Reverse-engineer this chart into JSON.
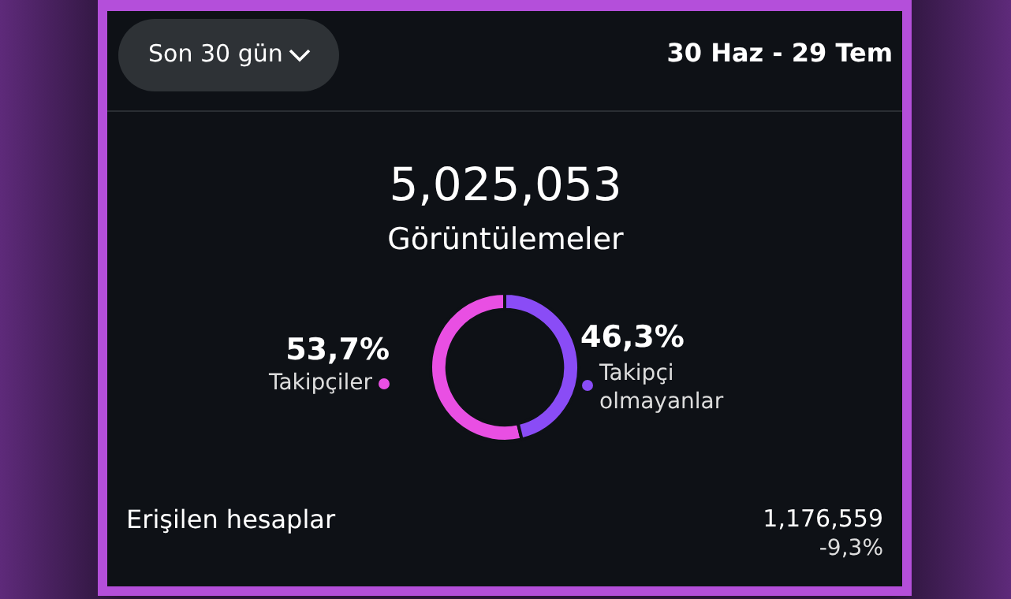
{
  "chart_data": {
    "type": "donut",
    "title": "5,025,053",
    "subtitle": "Görüntülemeler",
    "categories": [
      "Takipçiler",
      "Takipçi olmayanlar"
    ],
    "values": [
      53.7,
      46.3
    ],
    "colors": [
      "#e94fe3",
      "#8a4cf6"
    ],
    "value_labels": [
      "53,7%",
      "46,3%"
    ],
    "annotations": [
      "Son 30 gün",
      "30 Haz - 29 Tem",
      "Erişilen hesaplar",
      "1,176,559",
      "-9,3%"
    ]
  }
}
